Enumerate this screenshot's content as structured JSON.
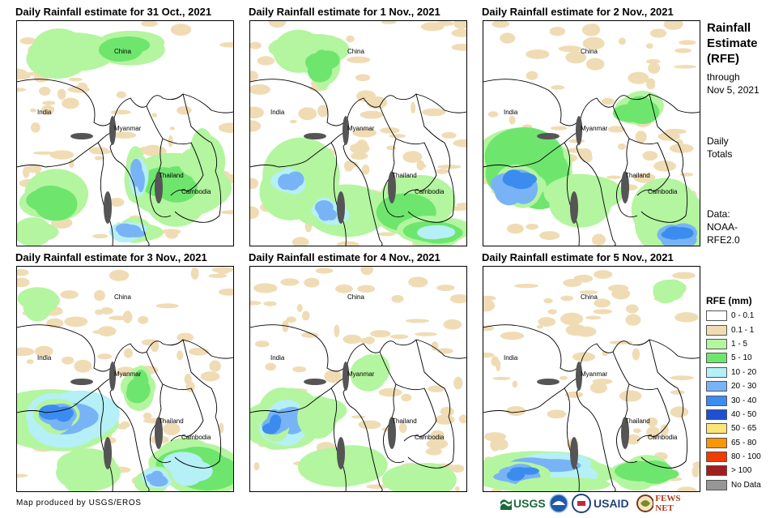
{
  "panels": [
    {
      "title": "Daily Rainfall estimate for 31 Oct., 2021"
    },
    {
      "title": "Daily Rainfall estimate for 1 Nov., 2021"
    },
    {
      "title": "Daily Rainfall estimate for 2 Nov., 2021"
    },
    {
      "title": "Daily Rainfall estimate for 3 Nov., 2021"
    },
    {
      "title": "Daily Rainfall estimate for 4 Nov., 2021"
    },
    {
      "title": "Daily Rainfall estimate for 5 Nov., 2021"
    }
  ],
  "map_labels": {
    "china": "China",
    "india": "India",
    "myanmar": "Myanmar",
    "thailand": "Thailand",
    "cambodia": "Cambodia"
  },
  "sidebar": {
    "title_lines": [
      "Rainfall",
      "Estimate",
      "(RFE)"
    ],
    "through": [
      "through",
      "Nov 5, 2021"
    ],
    "totals": [
      "Daily",
      "Totals"
    ],
    "data_source": [
      "Data:",
      "NOAA-",
      "RFE2.0"
    ]
  },
  "legend": {
    "title": "RFE (mm)",
    "items": [
      {
        "label": "0 - 0.1",
        "color": "#ffffff"
      },
      {
        "label": "0.1 - 1",
        "color": "#f0dcb4"
      },
      {
        "label": "1 - 5",
        "color": "#b4f5a0"
      },
      {
        "label": "5 - 10",
        "color": "#6ee66e"
      },
      {
        "label": "10 - 20",
        "color": "#b4f0f5"
      },
      {
        "label": "20 - 30",
        "color": "#78b4f5"
      },
      {
        "label": "30 - 40",
        "color": "#3c8cf0"
      },
      {
        "label": "40 - 50",
        "color": "#1e50d2"
      },
      {
        "label": "50 - 65",
        "color": "#fae678"
      },
      {
        "label": "65 - 80",
        "color": "#fa9600"
      },
      {
        "label": "80 - 100",
        "color": "#f03c00"
      },
      {
        "label": "> 100",
        "color": "#a01e1e"
      },
      {
        "label": "No Data",
        "color": "#969696"
      }
    ]
  },
  "footer": {
    "credit": "Map produced by USGS/EROS"
  },
  "logos": {
    "usgs": "USGS",
    "usaid": "USAID",
    "fewsnet": "FEWS NET"
  }
}
